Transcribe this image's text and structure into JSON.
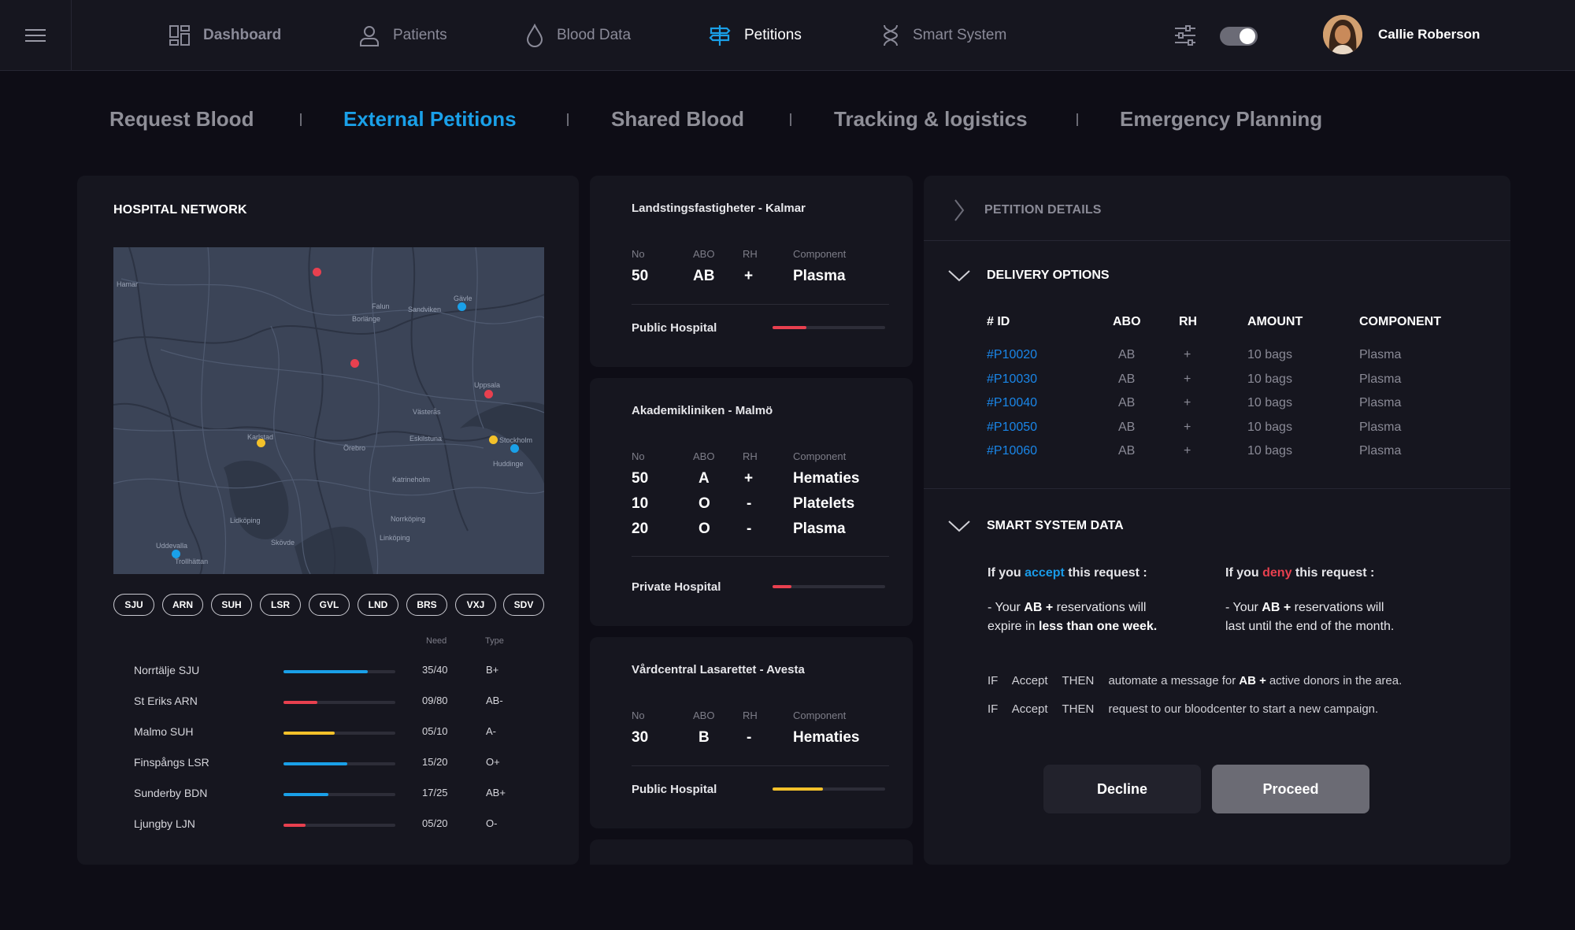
{
  "topbar": {
    "nav": [
      {
        "label": "Dashboard",
        "icon": "dashboard-grid-icon"
      },
      {
        "label": "Patients",
        "icon": "user-icon"
      },
      {
        "label": "Blood Data",
        "icon": "blood-drop-icon"
      },
      {
        "label": "Petitions",
        "icon": "signpost-icon"
      },
      {
        "label": "Smart System",
        "icon": "dna-icon"
      }
    ],
    "active": "Petitions",
    "user_name": "Callie Roberson",
    "accent": "#1aa0e8"
  },
  "tabs": [
    "Request Blood",
    "External Petitions",
    "Shared Blood",
    "Tracking & logistics",
    "Emergency Planning"
  ],
  "hospital_network": {
    "title": "HOSPITAL NETWORK",
    "map_labels": [
      "Hamar",
      "Falun",
      "Gävle",
      "Sandviken",
      "Borlänge",
      "Uppsala",
      "Västerås",
      "Stockholm",
      "Karlstad",
      "Örebro",
      "Eskilstuna",
      "Huddinge",
      "Norrköping",
      "Linköping",
      "Uddevalla",
      "Trollhättan",
      "Katrineholm",
      "Lidköping",
      "Skövde"
    ],
    "chips": [
      "SJU",
      "ARN",
      "SUH",
      "LSR",
      "GVL",
      "LND",
      "BRS",
      "VXJ",
      "SDV"
    ],
    "col_need": "Need",
    "col_type": "Type",
    "rows": [
      {
        "name": "Norrtälje SJU",
        "need": "35/40",
        "type": "B+",
        "level": 0.75,
        "color": "#1aa0e8"
      },
      {
        "name": "St Eriks ARN",
        "need": "09/80",
        "type": "AB-",
        "level": 0.3,
        "color": "#e8404f"
      },
      {
        "name": "Malmo SUH",
        "need": "05/10",
        "type": "A-",
        "level": 0.46,
        "color": "#f3c12a"
      },
      {
        "name": "Finspångs LSR",
        "need": "15/20",
        "type": "O+",
        "level": 0.57,
        "color": "#1aa0e8"
      },
      {
        "name": "Sunderby BDN",
        "need": "17/25",
        "type": "AB+",
        "level": 0.4,
        "color": "#1aa0e8"
      },
      {
        "name": "Ljungby LJN",
        "need": "05/20",
        "type": "O-",
        "level": 0.2,
        "color": "#e8404f"
      }
    ]
  },
  "petitions": {
    "labels": {
      "no": "No",
      "abo": "ABO",
      "rh": "RH",
      "component": "Component"
    },
    "cards": [
      {
        "title": "Landstingsfastigheter - Kalmar",
        "rows": [
          {
            "no": "50",
            "abo": "AB",
            "rh": "+",
            "component": "Plasma"
          }
        ],
        "hospital": "Public Hospital",
        "level": 0.3,
        "color": "#e8404f"
      },
      {
        "title": "Akademikliniken - Malmö",
        "rows": [
          {
            "no": "50",
            "abo": "A",
            "rh": "+",
            "component": "Hematies"
          },
          {
            "no": "10",
            "abo": "O",
            "rh": "-",
            "component": "Platelets"
          },
          {
            "no": "20",
            "abo": "O",
            "rh": "-",
            "component": "Plasma"
          }
        ],
        "hospital": "Private Hospital",
        "level": 0.17,
        "color": "#e8404f"
      },
      {
        "title": "Vårdcentral Lasarettet - Avesta",
        "rows": [
          {
            "no": "30",
            "abo": "B",
            "rh": "-",
            "component": "Hematies"
          }
        ],
        "hospital": "Public Hospital",
        "level": 0.45,
        "color": "#f3c12a"
      }
    ]
  },
  "details": {
    "header": "PETITION DETAILS",
    "delivery_title": "DELIVERY OPTIONS",
    "columns": [
      "# ID",
      "ABO",
      "RH",
      "AMOUNT",
      "COMPONENT"
    ],
    "rows": [
      {
        "id": "#P10020",
        "abo": "AB",
        "rh": "+",
        "amount": "10 bags",
        "component": "Plasma"
      },
      {
        "id": "#P10030",
        "abo": "AB",
        "rh": "+",
        "amount": "10 bags",
        "component": "Plasma"
      },
      {
        "id": "#P10040",
        "abo": "AB",
        "rh": "+",
        "amount": "10 bags",
        "component": "Plasma"
      },
      {
        "id": "#P10050",
        "abo": "AB",
        "rh": "+",
        "amount": "10 bags",
        "component": "Plasma"
      },
      {
        "id": "#P10060",
        "abo": "AB",
        "rh": "+",
        "amount": "10 bags",
        "component": "Plasma"
      }
    ],
    "smart_title": "SMART SYSTEM DATA",
    "accept": {
      "pre": "If you",
      "word": "accept",
      "post": "this request :",
      "line1_pre": "- Your",
      "blood": "AB +",
      "line1_post": "reservations will",
      "line2_pre": "expire in",
      "line2_bold": "less than one week."
    },
    "deny": {
      "pre": "If you",
      "word": "deny",
      "post": "this request :",
      "line1_pre": "- Your",
      "blood": "AB +",
      "line1_post": "reservations will",
      "line2": "last until the end of the month."
    },
    "rules": [
      {
        "if": "IF",
        "cond": "Accept",
        "then": "THEN",
        "pre": "automate a message for",
        "bold": "AB +",
        "post": "active donors in the area."
      },
      {
        "if": "IF",
        "cond": "Accept",
        "then": "THEN",
        "pre": "request to our bloodcenter to start a new campaign.",
        "bold": "",
        "post": ""
      }
    ],
    "decline_label": "Decline",
    "proceed_label": "Proceed"
  }
}
